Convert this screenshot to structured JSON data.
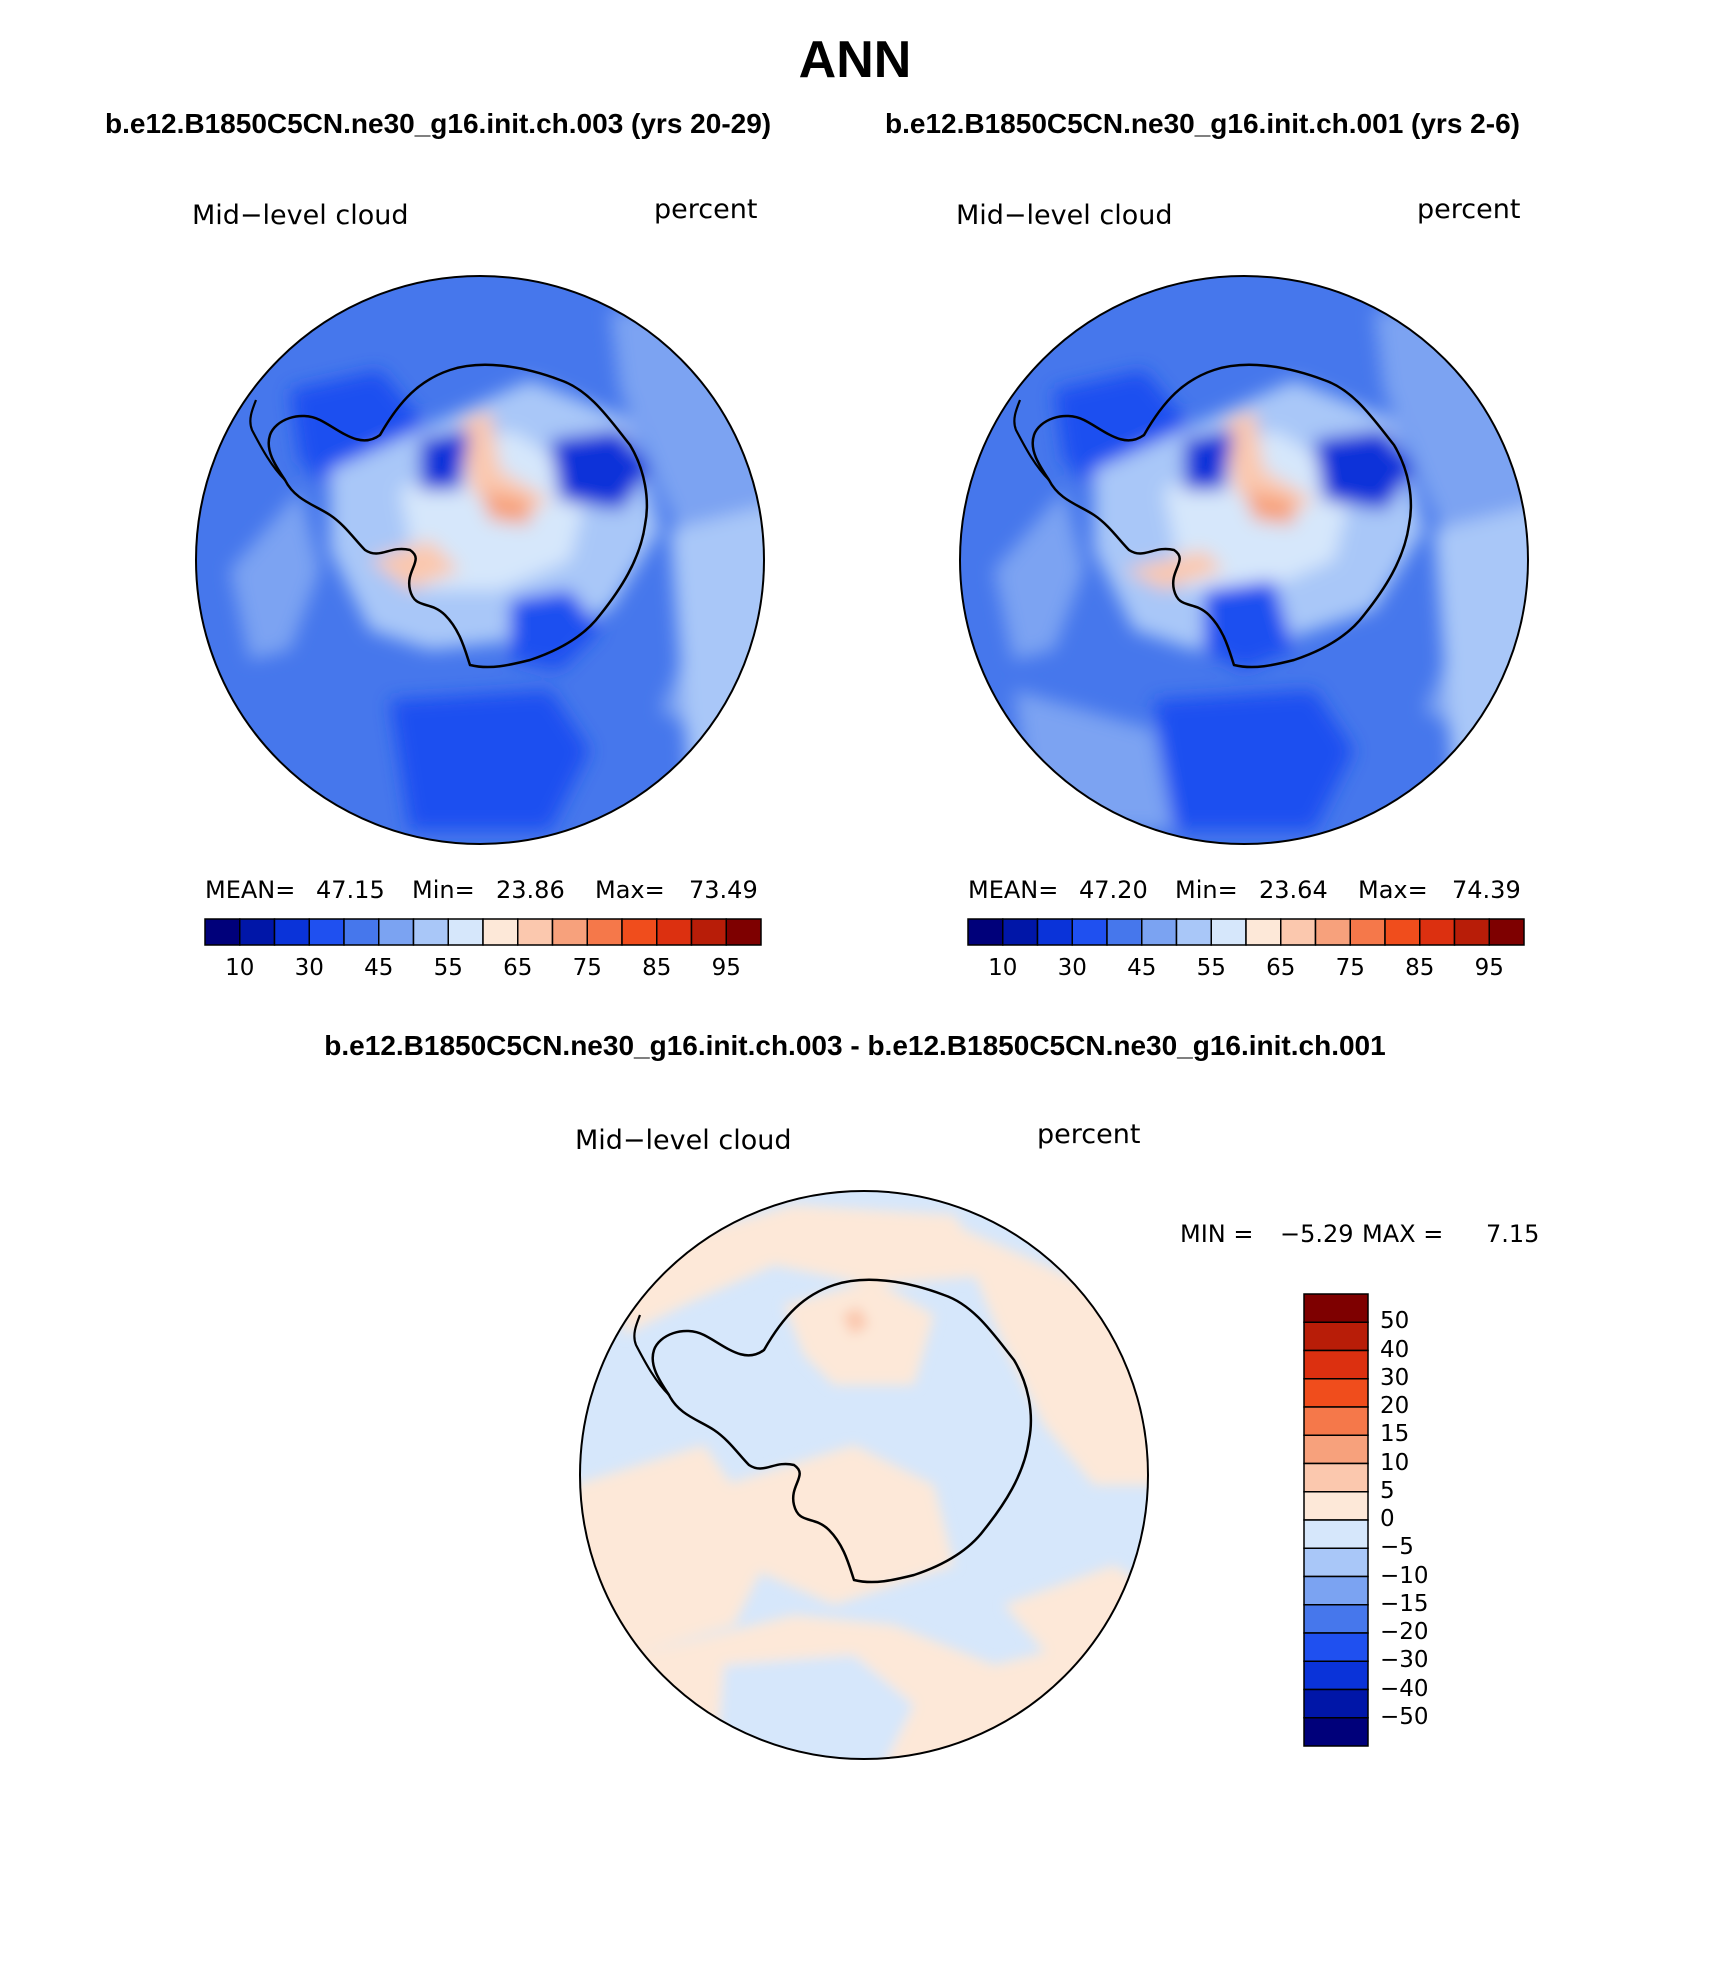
{
  "figure": {
    "title": "ANN",
    "case_a_title": "b.e12.B1850C5CN.ne30_g16.init.ch.003 (yrs 20-29)",
    "case_b_title": "b.e12.B1850C5CN.ne30_g16.init.ch.001 (yrs 2-6)",
    "diff_title": "b.e12.B1850C5CN.ne30_g16.init.ch.003 - b.e12.B1850C5CN.ne30_g16.init.ch.001"
  },
  "panel_a": {
    "variable": "Mid−level cloud",
    "units": "percent",
    "mean_label": "MEAN=",
    "mean": "47.15",
    "min_label": "Min=",
    "min": "23.86",
    "max_label": "Max=",
    "max": "73.49"
  },
  "panel_b": {
    "variable": "Mid−level cloud",
    "units": "percent",
    "mean_label": "MEAN=",
    "mean": "47.20",
    "min_label": "Min=",
    "min": "23.64",
    "max_label": "Max=",
    "max": "74.39"
  },
  "panel_diff": {
    "variable": "Mid−level cloud",
    "units": "percent",
    "min_label": "MIN =",
    "min": "−5.29",
    "max_label": "MAX =",
    "max": "7.15"
  },
  "colorbar_abs": {
    "ticks": [
      "10",
      "30",
      "45",
      "55",
      "65",
      "75",
      "85",
      "95"
    ],
    "colors": [
      "#00007a",
      "#0016a8",
      "#0a33d9",
      "#1f50f0",
      "#4677ec",
      "#7ba3f2",
      "#a9c7f8",
      "#d6e7fb",
      "#fde8d8",
      "#fbc8ae",
      "#f7a17c",
      "#f5784a",
      "#f04d1c",
      "#dc3010",
      "#b81d08",
      "#7e0000"
    ]
  },
  "colorbar_diff": {
    "ticks": [
      "50",
      "40",
      "30",
      "20",
      "15",
      "10",
      "5",
      "0",
      "−5",
      "−10",
      "−15",
      "−20",
      "−30",
      "−40",
      "−50"
    ],
    "colors": [
      "#7e0000",
      "#b81d08",
      "#dc3010",
      "#f04d1c",
      "#f5784a",
      "#f7a17c",
      "#fbc8ae",
      "#fde8d8",
      "#d6e7fb",
      "#a9c7f8",
      "#7ba3f2",
      "#4677ec",
      "#1f50f0",
      "#0a33d9",
      "#0016a8",
      "#00007a"
    ]
  }
}
